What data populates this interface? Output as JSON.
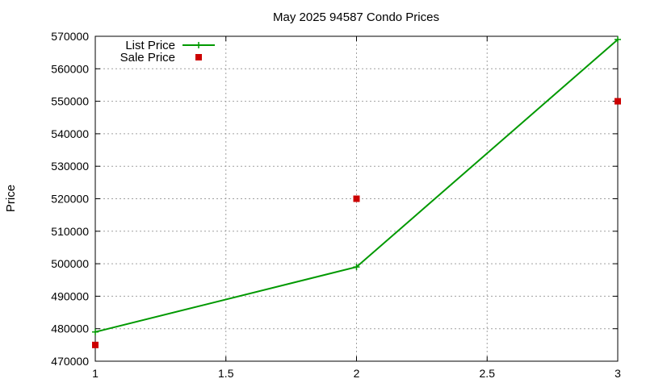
{
  "chart_data": {
    "type": "line",
    "title": "May 2025 94587 Condo Prices",
    "xlabel": "",
    "ylabel": "Price",
    "xlim": [
      1,
      3
    ],
    "ylim": [
      470000,
      570000
    ],
    "x_ticks": [
      "1",
      "1.5",
      "2",
      "2.5",
      "3"
    ],
    "y_ticks": [
      "470000",
      "480000",
      "490000",
      "500000",
      "510000",
      "520000",
      "530000",
      "540000",
      "550000",
      "560000",
      "570000"
    ],
    "grid": true,
    "legend_position": "top-left",
    "series": [
      {
        "name": "List Price",
        "style": "line-with-plus-markers",
        "color": "#009900",
        "x": [
          1,
          2,
          3
        ],
        "y": [
          479000,
          499000,
          569000
        ]
      },
      {
        "name": "Sale Price",
        "style": "square-markers",
        "color": "#cc0000",
        "x": [
          1,
          2,
          3
        ],
        "y": [
          475000,
          520000,
          550000
        ]
      }
    ]
  }
}
